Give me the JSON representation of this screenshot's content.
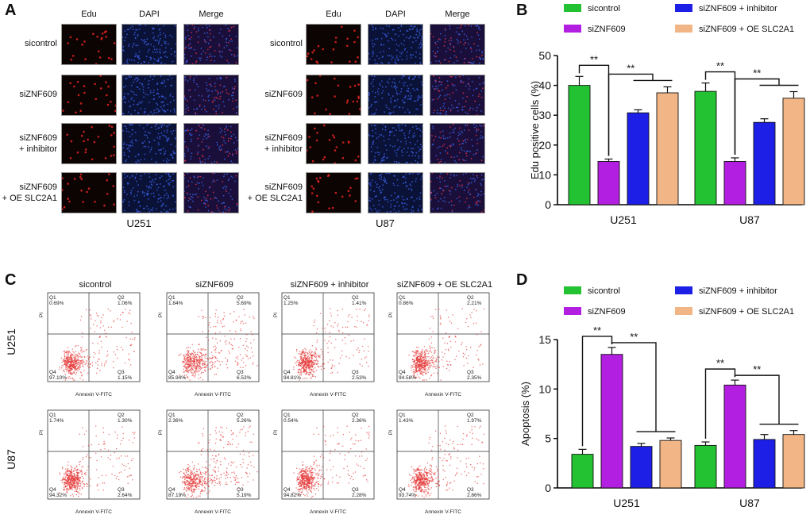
{
  "panels": {
    "A": "A",
    "B": "B",
    "C": "C",
    "D": "D"
  },
  "panel_a": {
    "columns": [
      "Edu",
      "DAPI",
      "Merge"
    ],
    "rows": [
      {
        "line1": "sicontrol",
        "line2": ""
      },
      {
        "line1": "siZNF609",
        "line2": ""
      },
      {
        "line1": "siZNF609",
        "line2": "+ inhibitor"
      },
      {
        "line1": "siZNF609",
        "line2": "+ OE SLC2A1"
      }
    ],
    "cell_lines": [
      "U251",
      "U87"
    ],
    "colors": {
      "edu_dot": "#e8251e",
      "dapi_dot": "#3a5de0",
      "merge_dot": "#d9304a"
    }
  },
  "panel_c": {
    "titles": [
      "sicontrol",
      "siZNF609",
      "siZNF609 + inhibitor",
      "siZNF609 + OE SLC2A1"
    ],
    "row_labels": [
      "U251",
      "U87"
    ],
    "axis_x": "Annexin V-FITC",
    "axis_y": "PI",
    "quadrant_names": [
      "Q1",
      "Q2",
      "Q3",
      "Q4"
    ],
    "plots": [
      [
        {
          "q1": "0.69%",
          "q2": "1.06%",
          "q3": "1.15%",
          "q4": "97.10%"
        },
        {
          "q1": "1.84%",
          "q2": "5.69%",
          "q3": "6.53%",
          "q4": "85.94%"
        },
        {
          "q1": "1.25%",
          "q2": "1.41%",
          "q3": "2.53%",
          "q4": "94.81%"
        },
        {
          "q1": "0.86%",
          "q2": "2.21%",
          "q3": "2.35%",
          "q4": "94.58%"
        }
      ],
      [
        {
          "q1": "1.74%",
          "q2": "1.30%",
          "q3": "2.64%",
          "q4": "94.32%"
        },
        {
          "q1": "2.36%",
          "q2": "5.26%",
          "q3": "5.19%",
          "q4": "87.19%"
        },
        {
          "q1": "0.54%",
          "q2": "2.36%",
          "q3": "2.28%",
          "q4": "94.82%"
        },
        {
          "q1": "1.43%",
          "q2": "1.97%",
          "q3": "2.86%",
          "q4": "93.74%"
        }
      ]
    ],
    "dot_color": "#e63c3c"
  },
  "chart_data": [
    {
      "type": "bar",
      "panel": "B",
      "ylabel": "Edu positive cells (%)",
      "ylim": [
        0,
        50
      ],
      "yticks": [
        0,
        10,
        20,
        30,
        40,
        50
      ],
      "categories": [
        "U251",
        "U87"
      ],
      "series": [
        {
          "name": "sicontrol",
          "color": "#22c232",
          "values": [
            40,
            38
          ],
          "errors": [
            3,
            2.8
          ]
        },
        {
          "name": "siZNF609",
          "color": "#b21fe0",
          "values": [
            14.5,
            14.5
          ],
          "errors": [
            0.8,
            1.2
          ]
        },
        {
          "name": "siZNF609 + inhibitor",
          "color": "#1d1fe6",
          "values": [
            30.8,
            27.6
          ],
          "errors": [
            1.0,
            1.2
          ]
        },
        {
          "name": "siZNF609 + OE SLC2A1",
          "color": "#f2b585",
          "values": [
            37.5,
            35.7
          ],
          "errors": [
            2.0,
            2.2
          ]
        }
      ],
      "significance": "**"
    },
    {
      "type": "bar",
      "panel": "D",
      "ylabel": "Apoptosis (%)",
      "ylim": [
        0,
        15
      ],
      "yticks": [
        0,
        5,
        10,
        15
      ],
      "categories": [
        "U251",
        "U87"
      ],
      "series": [
        {
          "name": "sicontrol",
          "color": "#22c232",
          "values": [
            3.4,
            4.3
          ],
          "errors": [
            0.5,
            0.35
          ]
        },
        {
          "name": "siZNF609",
          "color": "#b21fe0",
          "values": [
            13.5,
            10.4
          ],
          "errors": [
            0.7,
            0.5
          ]
        },
        {
          "name": "siZNF609 + inhibitor",
          "color": "#1d1fe6",
          "values": [
            4.2,
            4.9
          ],
          "errors": [
            0.3,
            0.5
          ]
        },
        {
          "name": "siZNF609 + OE SLC2A1",
          "color": "#f2b585",
          "values": [
            4.8,
            5.4
          ],
          "errors": [
            0.25,
            0.4
          ]
        }
      ],
      "significance": "**"
    }
  ]
}
